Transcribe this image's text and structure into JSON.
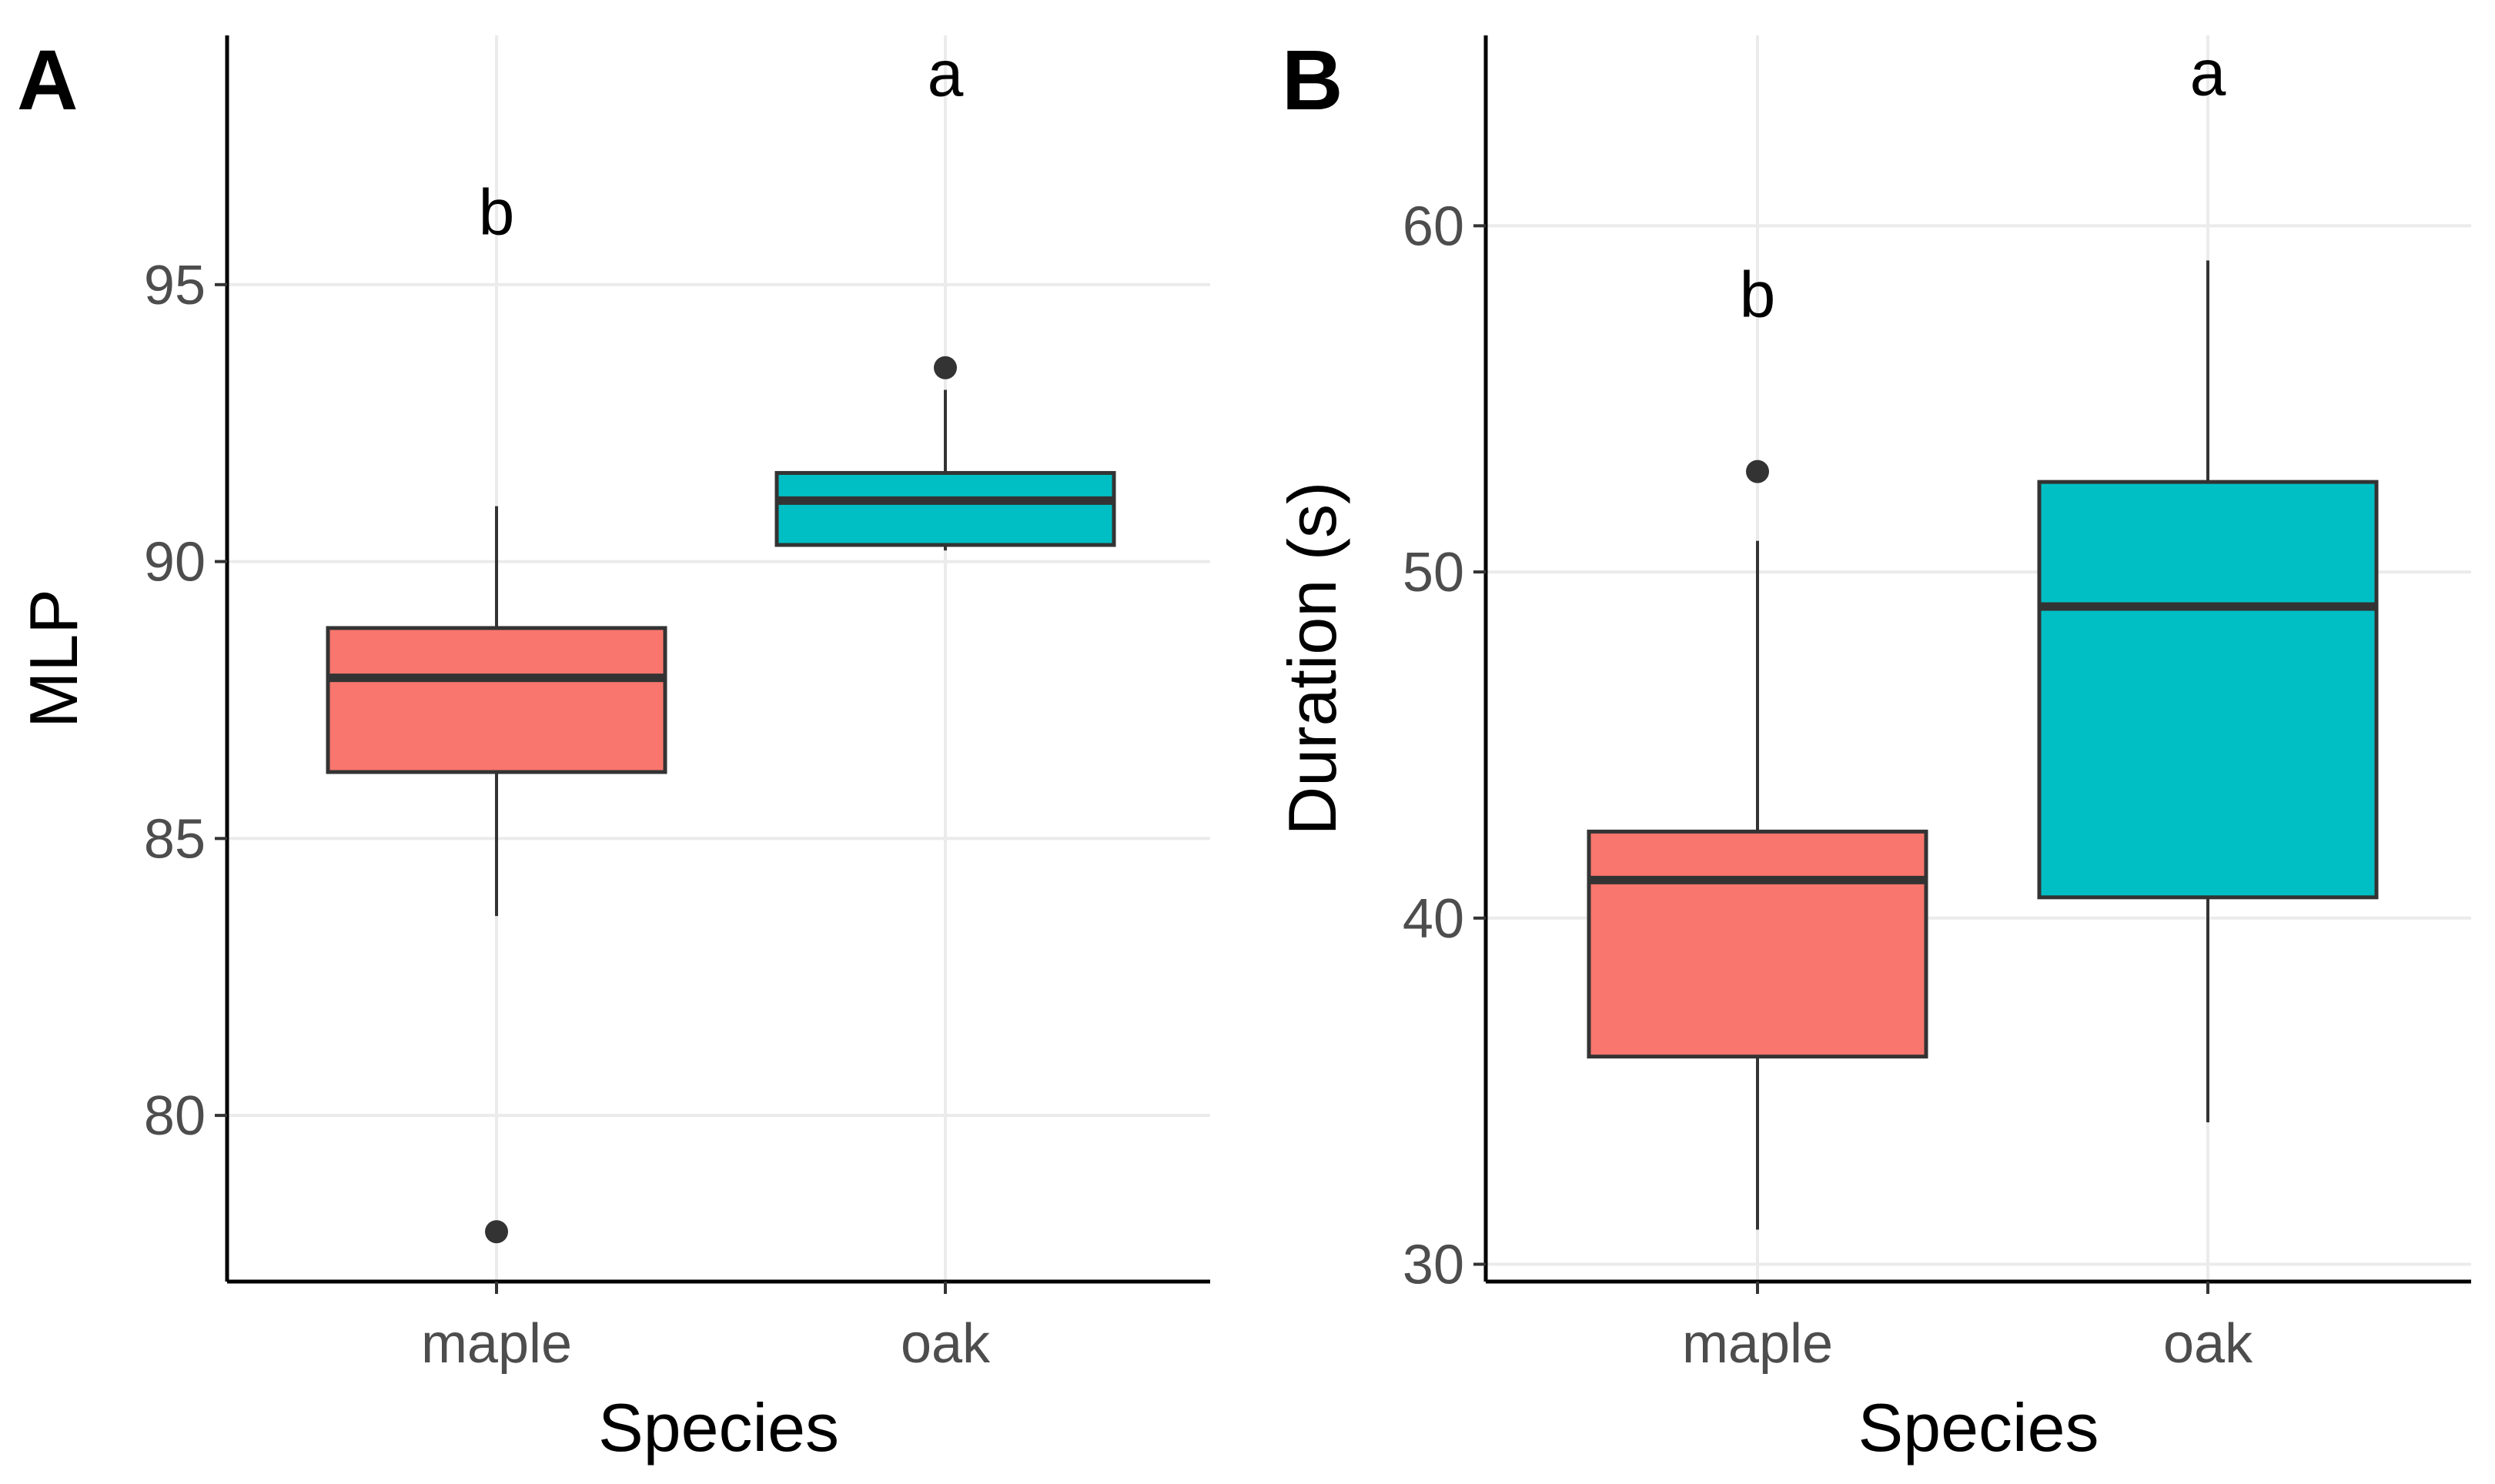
{
  "figure": {
    "panels": [
      {
        "tag": "A"
      },
      {
        "tag": "B"
      }
    ]
  },
  "chart_data": [
    {
      "type": "box",
      "panel": "A",
      "xlabel": "Species",
      "ylabel": "MLP",
      "categories": [
        "maple",
        "oak"
      ],
      "ylim": [
        77,
        99.5
      ],
      "yticks": [
        80,
        85,
        90,
        95
      ],
      "grid": true,
      "colors": [
        "#F8766D",
        "#00BFC4"
      ],
      "boxes": [
        {
          "category": "maple",
          "whisker_low": 83.6,
          "q1": 86.2,
          "median": 87.9,
          "q3": 88.8,
          "whisker_high": 91.0,
          "outliers": [
            77.9
          ],
          "letter": "b",
          "letter_y": 96.3
        },
        {
          "category": "oak",
          "whisker_low": 90.2,
          "q1": 90.3,
          "median": 91.1,
          "q3": 91.6,
          "whisker_high": 93.1,
          "outliers": [
            93.5
          ],
          "letter": "a",
          "letter_y": 98.8
        }
      ]
    },
    {
      "type": "box",
      "panel": "B",
      "xlabel": "Species",
      "ylabel": "Duration (s)",
      "categories": [
        "maple",
        "oak"
      ],
      "ylim": [
        29.5,
        65.5
      ],
      "yticks": [
        30,
        40,
        50,
        60
      ],
      "grid": true,
      "colors": [
        "#F8766D",
        "#00BFC4"
      ],
      "boxes": [
        {
          "category": "maple",
          "whisker_low": 31.0,
          "q1": 36.0,
          "median": 41.1,
          "q3": 42.5,
          "whisker_high": 50.9,
          "outliers": [
            52.9
          ],
          "letter": "b",
          "letter_y": 58.0
        },
        {
          "category": "oak",
          "whisker_low": 34.1,
          "q1": 40.6,
          "median": 49.0,
          "q3": 52.6,
          "whisker_high": 59.0,
          "outliers": [],
          "letter": "a",
          "letter_y": 64.4
        }
      ]
    }
  ]
}
